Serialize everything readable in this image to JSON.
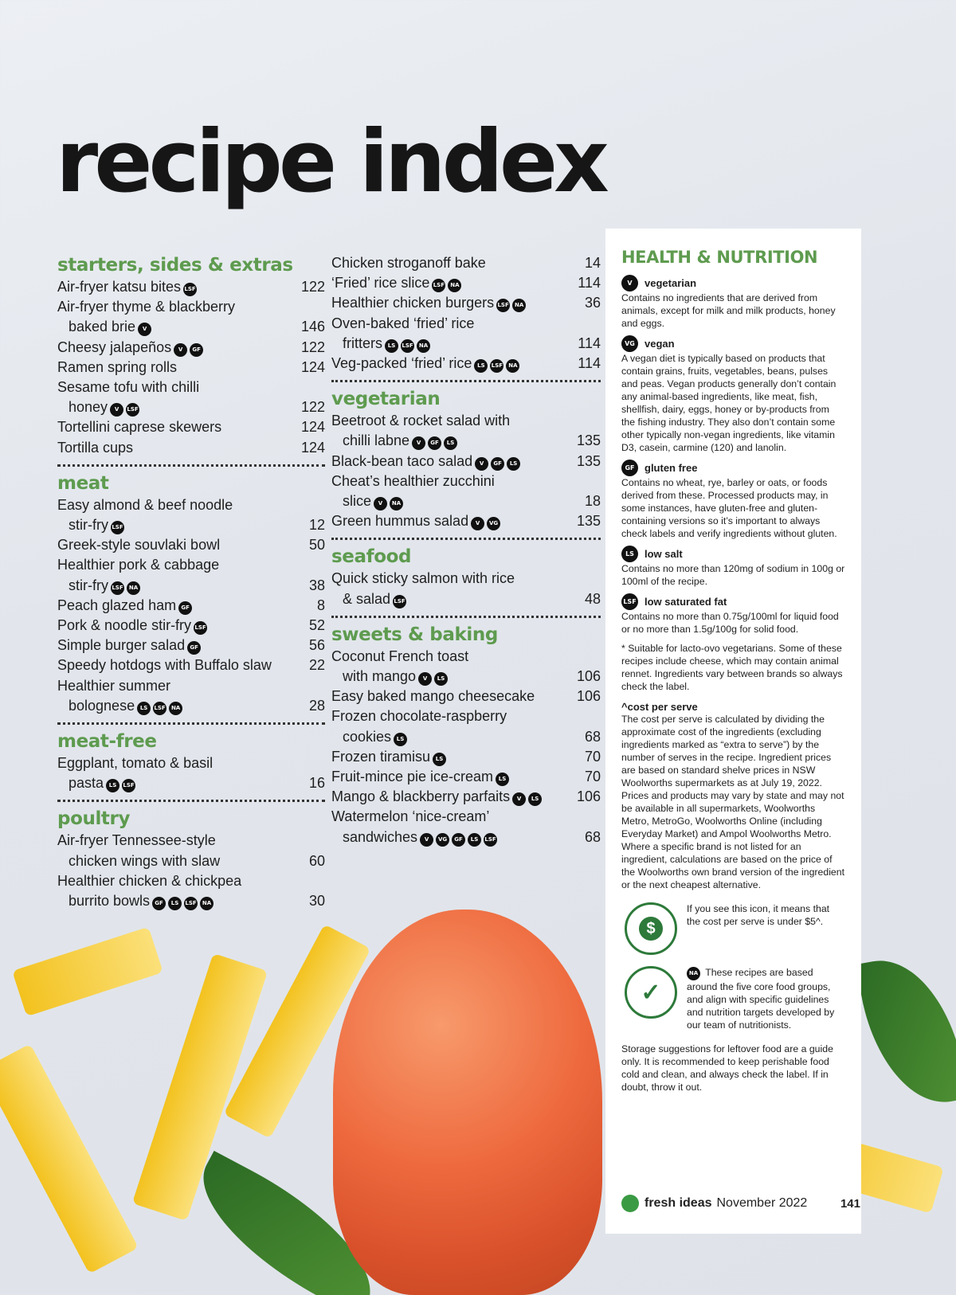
{
  "title": "recipe index",
  "columns": {
    "left": [
      {
        "section": "starters, sides & extras",
        "entries": [
          {
            "lines": [
              "Air-fryer katsu bites"
            ],
            "badges": [
              "LSF"
            ],
            "page": "122"
          },
          {
            "lines": [
              "Air-fryer thyme & blackberry",
              "baked brie"
            ],
            "badges": [
              "V"
            ],
            "page": "146"
          },
          {
            "lines": [
              "Cheesy jalapeños"
            ],
            "badges": [
              "V",
              "GF"
            ],
            "page": "122"
          },
          {
            "lines": [
              "Ramen spring rolls"
            ],
            "badges": [],
            "page": "124"
          },
          {
            "lines": [
              "Sesame tofu with chilli",
              "honey"
            ],
            "badges": [
              "V",
              "LSF"
            ],
            "page": "122"
          },
          {
            "lines": [
              "Tortellini caprese skewers"
            ],
            "badges": [],
            "page": "124"
          },
          {
            "lines": [
              "Tortilla cups"
            ],
            "badges": [],
            "page": "124"
          }
        ]
      },
      {
        "section": "meat",
        "entries": [
          {
            "lines": [
              "Easy almond & beef noodle",
              "stir-fry"
            ],
            "badges": [
              "LSF"
            ],
            "page": "12"
          },
          {
            "lines": [
              "Greek-style souvlaki bowl"
            ],
            "badges": [],
            "page": "50"
          },
          {
            "lines": [
              "Healthier pork & cabbage",
              "stir-fry"
            ],
            "badges": [
              "LSF",
              "NA"
            ],
            "page": "38"
          },
          {
            "lines": [
              "Peach glazed ham"
            ],
            "badges": [
              "GF"
            ],
            "page": "8"
          },
          {
            "lines": [
              "Pork & noodle stir-fry"
            ],
            "badges": [
              "LSF"
            ],
            "page": "52"
          },
          {
            "lines": [
              "Simple burger salad"
            ],
            "badges": [
              "GF"
            ],
            "page": "56"
          },
          {
            "lines": [
              "Speedy hotdogs with Buffalo slaw"
            ],
            "badges": [],
            "page": "22"
          },
          {
            "lines": [
              "Healthier summer",
              "bolognese"
            ],
            "badges": [
              "LS",
              "LSF",
              "NA"
            ],
            "page": "28"
          }
        ]
      },
      {
        "section": "meat-free",
        "entries": [
          {
            "lines": [
              "Eggplant, tomato & basil",
              "pasta"
            ],
            "badges": [
              "LS",
              "LSF"
            ],
            "page": "16"
          }
        ]
      },
      {
        "section": "poultry",
        "entries": [
          {
            "lines": [
              "Air-fryer Tennessee-style",
              "chicken wings with slaw"
            ],
            "badges": [],
            "page": "60"
          },
          {
            "lines": [
              "Healthier chicken & chickpea",
              "burrito bowls"
            ],
            "badges": [
              "GF",
              "LS",
              "LSF",
              "NA"
            ],
            "page": "30"
          }
        ]
      }
    ],
    "right": [
      {
        "section": "",
        "entries": [
          {
            "lines": [
              "Chicken stroganoff bake"
            ],
            "badges": [],
            "page": "14"
          },
          {
            "lines": [
              "‘Fried’ rice slice"
            ],
            "badges": [
              "LSF",
              "NA"
            ],
            "page": "114"
          },
          {
            "lines": [
              "Healthier chicken burgers"
            ],
            "badges": [
              "LSF",
              "NA"
            ],
            "page": "36"
          },
          {
            "lines": [
              "Oven-baked ‘fried’ rice",
              "fritters"
            ],
            "badges": [
              "LS",
              "LSF",
              "NA"
            ],
            "page": "114"
          },
          {
            "lines": [
              "Veg-packed ‘fried’ rice"
            ],
            "badges": [
              "LS",
              "LSF",
              "NA"
            ],
            "page": "114"
          }
        ]
      },
      {
        "section": "vegetarian",
        "entries": [
          {
            "lines": [
              "Beetroot & rocket salad with",
              "chilli labne"
            ],
            "badges": [
              "V",
              "GF",
              "LS"
            ],
            "page": "135"
          },
          {
            "lines": [
              "Black-bean taco salad"
            ],
            "badges": [
              "V",
              "GF",
              "LS"
            ],
            "page": "135"
          },
          {
            "lines": [
              "Cheat’s healthier zucchini",
              "slice"
            ],
            "badges": [
              "V",
              "NA"
            ],
            "page": "18"
          },
          {
            "lines": [
              "Green hummus salad"
            ],
            "badges": [
              "V",
              "VG"
            ],
            "page": "135"
          }
        ]
      },
      {
        "section": "seafood",
        "entries": [
          {
            "lines": [
              "Quick sticky salmon with rice",
              "& salad"
            ],
            "badges": [
              "LSF"
            ],
            "page": "48"
          }
        ]
      },
      {
        "section": "sweets & baking",
        "entries": [
          {
            "lines": [
              "Coconut French toast",
              "with mango"
            ],
            "badges": [
              "V",
              "LS"
            ],
            "page": "106"
          },
          {
            "lines": [
              "Easy baked mango cheesecake"
            ],
            "badges": [],
            "page": "106"
          },
          {
            "lines": [
              "Frozen chocolate-raspberry",
              "cookies"
            ],
            "badges": [
              "LS"
            ],
            "page": "68"
          },
          {
            "lines": [
              "Frozen tiramisu"
            ],
            "badges": [
              "LS"
            ],
            "page": "70"
          },
          {
            "lines": [
              "Fruit-mince pie ice-cream"
            ],
            "badges": [
              "LS"
            ],
            "page": "70"
          },
          {
            "lines": [
              "Mango & blackberry parfaits"
            ],
            "badges": [
              "V",
              "LS"
            ],
            "page": "106"
          },
          {
            "lines": [
              "Watermelon ‘nice-cream’",
              "sandwiches"
            ],
            "badges": [
              "V",
              "VG",
              "GF",
              "LS",
              "LSF"
            ],
            "page": "68"
          }
        ]
      }
    ]
  },
  "health": {
    "heading": "HEALTH & NUTRITION",
    "items": [
      {
        "badge": "V",
        "label": "vegetarian",
        "text": "Contains no ingredients that are derived from animals, except for milk and milk products, honey and eggs."
      },
      {
        "badge": "VG",
        "label": "vegan",
        "text": "A vegan diet is typically based on products that contain grains, fruits, vegetables, beans, pulses and peas. Vegan products generally don’t contain any animal-based ingredients, like meat, fish, shellfish, dairy, eggs, honey or by-products from the fishing industry. They also don’t contain some other typically non-vegan ingredients, like vitamin D3, casein, carmine (120) and lanolin."
      },
      {
        "badge": "GF",
        "label": "gluten free",
        "text": "Contains no wheat, rye, barley or oats, or foods derived from these. Processed products may, in some instances, have gluten-free and gluten-containing versions so it’s important to always check labels and verify ingredients without gluten."
      },
      {
        "badge": "LS",
        "label": "low salt",
        "text": "Contains no more than 120mg of sodium in 100g or 100ml of the recipe."
      },
      {
        "badge": "LSF",
        "label": "low saturated fat",
        "text": "Contains no more than 0.75g/100ml for liquid food or no more than 1.5g/100g for solid food."
      }
    ],
    "lacto_note": "* Suitable for lacto-ovo vegetarians. Some of these recipes include cheese, which may contain animal rennet. Ingredients vary between brands so always check the label.",
    "cost_heading": "^cost per serve",
    "cost_text": "The cost per serve is calculated by dividing the approximate cost of the ingredients (excluding ingredients marked as “extra to serve”) by the number of serves in the recipe. Ingredient prices are based on standard shelve prices in NSW Woolworths supermarkets as at July 19, 2022. Prices and products may vary by state and may not be available in all supermarkets, Woolworths Metro, MetroGo, Woolworths Online (including Everyday Market) and Ampol Woolworths Metro. Where a specific brand is not listed for an ingredient, calculations are based on the price of the Woolworths own brand version of the ingredient or the next cheapest alternative.",
    "budget_stamp": "Budget Friendly",
    "budget_text": "If you see this icon, it means that the cost per serve is under $5^.",
    "na_stamp": "NUTRITIONALLY APPROVED",
    "na_badge": "NA",
    "na_text": "These recipes are based around the five core food groups, and align with specific guidelines and nutrition targets developed by our team of nutritionists.",
    "storage_text": "Storage suggestions for leftover food are a guide only. It is recommended to keep perishable food cold and clean, and always check the label. If in doubt, throw it out."
  },
  "footer": {
    "brand": "fresh ideas",
    "issue": "November 2022",
    "page": "141"
  },
  "colors": {
    "accent": "#5e9b4f",
    "badge": "#111111",
    "stamp": "#2d7a3a"
  }
}
